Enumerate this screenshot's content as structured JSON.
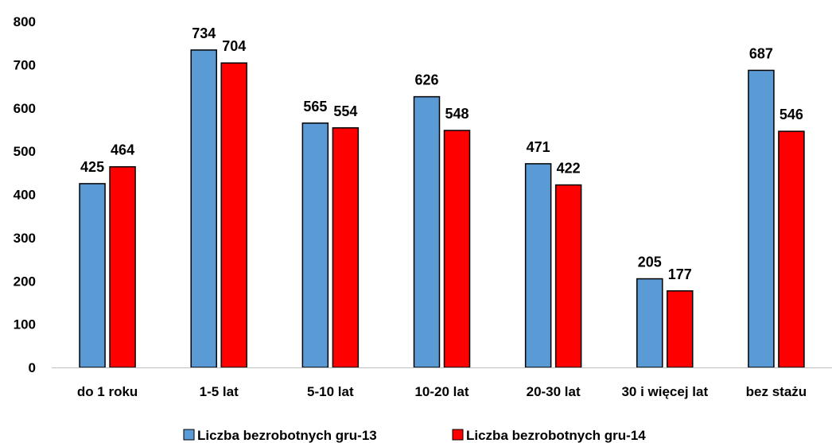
{
  "chart_data": {
    "type": "bar",
    "title": "",
    "xlabel": "",
    "ylabel": "",
    "ylim": [
      0,
      800
    ],
    "yticks": [
      0,
      100,
      200,
      300,
      400,
      500,
      600,
      700,
      800
    ],
    "grid": false,
    "legend_position": "bottom",
    "categories": [
      "do 1 roku",
      "1-5 lat",
      "5-10 lat",
      "10-20 lat",
      "20-30 lat",
      "30 i więcej lat",
      "bez stażu"
    ],
    "series": [
      {
        "name": "Liczba bezrobotnych gru-13",
        "color": "#5B9BD5",
        "values": [
          425,
          734,
          565,
          626,
          471,
          205,
          687
        ]
      },
      {
        "name": "Liczba bezrobotnych gru-14",
        "color": "#FF0000",
        "values": [
          464,
          704,
          554,
          548,
          422,
          177,
          546
        ]
      }
    ]
  }
}
